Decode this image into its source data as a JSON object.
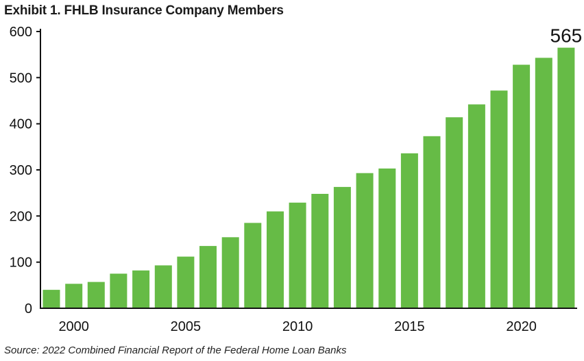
{
  "chart_data": {
    "type": "bar",
    "title": "Exhibit 1. FHLB Insurance Company Members",
    "source": "Source: 2022 Combined Financial Report of the Federal Home Loan Banks",
    "xlabel": "",
    "ylabel": "",
    "categories": [
      1999,
      2000,
      2001,
      2002,
      2003,
      2004,
      2005,
      2006,
      2007,
      2008,
      2009,
      2010,
      2011,
      2012,
      2013,
      2014,
      2015,
      2016,
      2017,
      2018,
      2019,
      2020,
      2021,
      2022
    ],
    "x_tick_labels": [
      "2000",
      "2005",
      "2010",
      "2015",
      "2020"
    ],
    "values": [
      40,
      53,
      57,
      75,
      82,
      93,
      112,
      135,
      154,
      185,
      210,
      229,
      248,
      263,
      293,
      303,
      336,
      373,
      414,
      442,
      472,
      528,
      543,
      565
    ],
    "ylim": [
      0,
      600
    ],
    "y_ticks": [
      "0",
      "100",
      "200",
      "300",
      "400",
      "500",
      "600"
    ],
    "data_labels": [
      {
        "index": 23,
        "text": "565"
      }
    ],
    "grid": false,
    "bar_color": "#66bb46",
    "axis_color": "#111111"
  }
}
